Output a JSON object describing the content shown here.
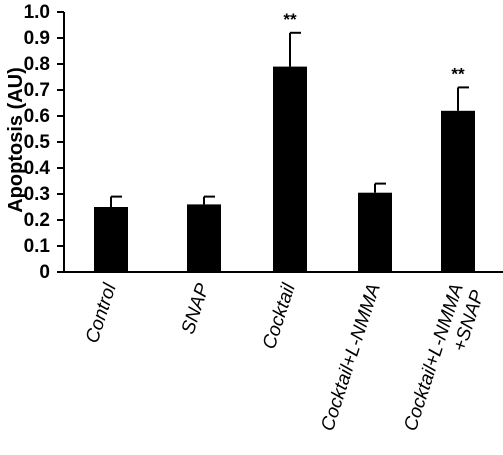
{
  "chart_data": {
    "type": "bar",
    "title": "",
    "xlabel": "",
    "ylabel": "Apoptosis (AU)",
    "ylim": [
      0,
      1.0
    ],
    "yticks": [
      "0",
      "0.1",
      "0.2",
      "0.3",
      "0.4",
      "0.5",
      "0.6",
      "0.7",
      "0.8",
      "0.9",
      "1.0"
    ],
    "categories": [
      [
        "Control"
      ],
      [
        "SNAP"
      ],
      [
        "Cocktail"
      ],
      [
        "Cocktail+L-NMMA"
      ],
      [
        "Cocktail+L-NMMA",
        "+SNAP"
      ]
    ],
    "values": [
      0.25,
      0.26,
      0.79,
      0.305,
      0.62
    ],
    "errors": [
      0.04,
      0.03,
      0.13,
      0.035,
      0.09
    ],
    "significance": [
      "",
      "",
      "**",
      "",
      "**"
    ],
    "grid": false,
    "bar_color": "#000000"
  }
}
